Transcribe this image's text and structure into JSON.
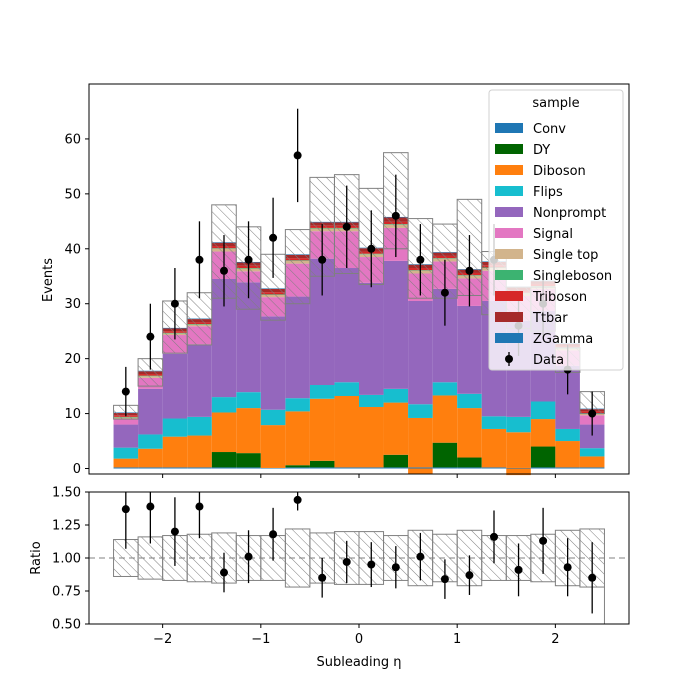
{
  "chart_data": [
    {
      "type": "bar",
      "stacked": true,
      "xlabel": "",
      "ylabel": "Events",
      "xlim": [
        -2.75,
        2.75
      ],
      "ylim": [
        -1,
        70
      ],
      "yticks": [
        0,
        10,
        20,
        30,
        40,
        50,
        60
      ],
      "bin_edges": [
        -2.5,
        -2.25,
        -2.0,
        -1.75,
        -1.5,
        -1.25,
        -1.0,
        -0.75,
        -0.5,
        -0.25,
        0.0,
        0.25,
        0.5,
        0.75,
        1.0,
        1.25,
        1.5,
        1.75,
        2.0,
        2.25,
        2.5
      ],
      "legend": {
        "title": "sample",
        "placement": "top-right"
      },
      "series": [
        {
          "name": "Conv",
          "color": "#1f77b4",
          "values": [
            0.2,
            0.2,
            0.2,
            0.2,
            0.2,
            0.2,
            0.1,
            0.2,
            0.2,
            0.2,
            0.2,
            0.2,
            0.2,
            0.2,
            0.2,
            0.2,
            0.1,
            0.2,
            0.2,
            0.2
          ]
        },
        {
          "name": "DY",
          "color": "#006400",
          "values": [
            0,
            0,
            0,
            0,
            2.8,
            2.6,
            0,
            0.4,
            1.2,
            0,
            0,
            2.3,
            0,
            4.5,
            1.8,
            0,
            0,
            3.8,
            0,
            0
          ]
        },
        {
          "name": "Diboson",
          "color": "#ff7f0e",
          "values": [
            1.6,
            3.4,
            5.6,
            5.8,
            7.2,
            8.2,
            7.8,
            9.8,
            11.3,
            13.0,
            11.0,
            9.5,
            9.0,
            8.6,
            9.0,
            7.0,
            6.5,
            5.0,
            4.8,
            2.0
          ]
        },
        {
          "name": "Flips",
          "color": "#17becf",
          "values": [
            2.0,
            2.6,
            3.3,
            3.4,
            2.8,
            2.9,
            2.8,
            2.4,
            2.5,
            2.5,
            2.2,
            2.5,
            2.5,
            2.4,
            2.6,
            2.3,
            2.8,
            3.2,
            2.2,
            1.5
          ]
        },
        {
          "name": "Nonprompt",
          "color": "#9467bd",
          "values": [
            4.2,
            8.3,
            11.8,
            13.2,
            21.5,
            20.0,
            17.0,
            18.5,
            23.0,
            20.8,
            20.4,
            23.3,
            18.8,
            17.0,
            16.0,
            21.0,
            17.5,
            16.5,
            11.5,
            4.3
          ]
        },
        {
          "name": "Signal",
          "color": "#e377c2",
          "values": [
            1.0,
            2.0,
            3.4,
            3.3,
            5.0,
            2.0,
            3.5,
            6.0,
            5.0,
            6.7,
            4.7,
            6.0,
            5.0,
            5.0,
            5.0,
            5.5,
            4.5,
            4.0,
            2.8,
            1.7
          ]
        },
        {
          "name": "Single top",
          "color": "#d2b48c",
          "values": [
            0.3,
            0.3,
            0.3,
            0.3,
            0.5,
            0.5,
            0.4,
            0.5,
            0.5,
            0.5,
            0.5,
            0.6,
            0.5,
            0.5,
            0.5,
            0.5,
            0.5,
            0.4,
            0.3,
            0.3
          ]
        },
        {
          "name": "Singleboson",
          "color": "#3cb371",
          "values": [
            0.1,
            0.1,
            0.1,
            0.1,
            0.1,
            0.1,
            0.1,
            0.1,
            0.1,
            0.1,
            0.1,
            0.1,
            0.1,
            0.1,
            0.1,
            0.1,
            0.1,
            0.1,
            0.1,
            0.1
          ]
        },
        {
          "name": "Triboson",
          "color": "#d62728",
          "values": [
            0.3,
            0.3,
            0.3,
            0.3,
            0.4,
            0.4,
            0.4,
            0.4,
            0.4,
            0.4,
            0.4,
            0.4,
            0.4,
            0.4,
            0.4,
            0.4,
            0.4,
            0.4,
            0.3,
            0.3
          ]
        },
        {
          "name": "Ttbar",
          "color": "#a52a2a",
          "values": [
            0.4,
            0.5,
            0.5,
            0.6,
            0.6,
            0.6,
            0.6,
            0.6,
            0.6,
            0.6,
            0.6,
            0.8,
            0.6,
            0.6,
            0.6,
            0.6,
            0.6,
            0.5,
            0.5,
            0.4
          ]
        },
        {
          "name": "ZGamma",
          "color": "#1f77b4",
          "values": [
            0.1,
            0.1,
            0.1,
            0.1,
            0.1,
            0.1,
            0.1,
            0.1,
            0.1,
            0.1,
            0.1,
            0.1,
            0.1,
            0.1,
            0.1,
            0.1,
            0.1,
            0.1,
            0.1,
            0.1
          ]
        }
      ],
      "negative_fills": [
        {
          "name": "Diboson",
          "bin_index": 12,
          "from": 0,
          "to": -1.0
        },
        {
          "name": "Diboson",
          "bin_index": 16,
          "from": 0,
          "to": -1.2
        }
      ],
      "uncertainty_band": {
        "up": [
          11.5,
          20.0,
          30.5,
          32.0,
          48.0,
          44.0,
          39.0,
          43.5,
          53.0,
          53.5,
          51.0,
          57.5,
          45.5,
          44.5,
          49.0,
          39.5,
          33.0,
          33.0,
          22.0,
          14.0
        ],
        "down": [
          9.0,
          15.0,
          21.0,
          22.5,
          31.0,
          29.0,
          27.0,
          30.0,
          35.0,
          35.5,
          33.5,
          40.0,
          31.0,
          31.0,
          31.5,
          28.0,
          25.5,
          25.0,
          17.5,
          10.0
        ]
      },
      "data": {
        "name": "Data",
        "x": [
          -2.375,
          -2.125,
          -1.875,
          -1.625,
          -1.375,
          -1.125,
          -0.875,
          -0.625,
          -0.375,
          -0.125,
          0.125,
          0.375,
          0.625,
          0.875,
          1.125,
          1.375,
          1.625,
          1.875,
          2.125,
          2.375
        ],
        "y": [
          14,
          24,
          30,
          38,
          36,
          38,
          42,
          57,
          38,
          44,
          40,
          46,
          38,
          32,
          36,
          38,
          26,
          30,
          18,
          10
        ],
        "yerr": [
          4.5,
          6.0,
          6.5,
          7.0,
          6.5,
          7.0,
          7.3,
          8.5,
          6.5,
          7.5,
          7.0,
          7.5,
          6.5,
          6.0,
          6.5,
          6.5,
          5.5,
          6.0,
          4.5,
          4.0
        ]
      }
    },
    {
      "type": "scatter",
      "xlabel": "Subleading η",
      "ylabel": "Ratio",
      "xlim": [
        -2.75,
        2.75
      ],
      "ylim": [
        0.5,
        1.5
      ],
      "yticks": [
        0.5,
        0.75,
        1.0,
        1.25,
        1.5
      ],
      "xticks": [
        -2,
        -1,
        0,
        1,
        2
      ],
      "reference_line": 1.0,
      "bin_edges": [
        -2.5,
        -2.25,
        -2.0,
        -1.75,
        -1.5,
        -1.25,
        -1.0,
        -0.75,
        -0.5,
        -0.25,
        0.0,
        0.25,
        0.5,
        0.75,
        1.0,
        1.25,
        1.5,
        1.75,
        2.0,
        2.25,
        2.5
      ],
      "band_up": [
        1.14,
        1.16,
        1.17,
        1.18,
        1.19,
        1.17,
        1.17,
        1.22,
        1.19,
        1.2,
        1.2,
        1.17,
        1.21,
        1.18,
        1.21,
        1.17,
        1.17,
        1.18,
        1.21,
        1.22
      ],
      "band_down": [
        0.86,
        0.84,
        0.83,
        0.82,
        0.81,
        0.83,
        0.83,
        0.78,
        0.81,
        0.8,
        0.8,
        0.83,
        0.79,
        0.82,
        0.79,
        0.83,
        0.83,
        0.82,
        0.79,
        0.78
      ],
      "x": [
        -2.375,
        -2.125,
        -1.875,
        -1.625,
        -1.375,
        -1.125,
        -0.875,
        -0.625,
        -0.375,
        -0.125,
        0.125,
        0.375,
        0.625,
        0.875,
        1.125,
        1.375,
        1.625,
        1.875,
        2.125,
        2.375
      ],
      "y": [
        1.37,
        1.39,
        1.2,
        1.39,
        0.89,
        1.01,
        1.18,
        1.44,
        0.85,
        0.97,
        0.95,
        0.93,
        1.01,
        0.84,
        0.87,
        1.16,
        0.91,
        1.13,
        0.93,
        0.85
      ],
      "yerr": [
        0.3,
        0.28,
        0.26,
        0.24,
        0.15,
        0.2,
        0.2,
        0.08,
        0.15,
        0.16,
        0.17,
        0.16,
        0.18,
        0.15,
        0.15,
        0.2,
        0.2,
        0.25,
        0.22,
        0.27
      ]
    }
  ]
}
